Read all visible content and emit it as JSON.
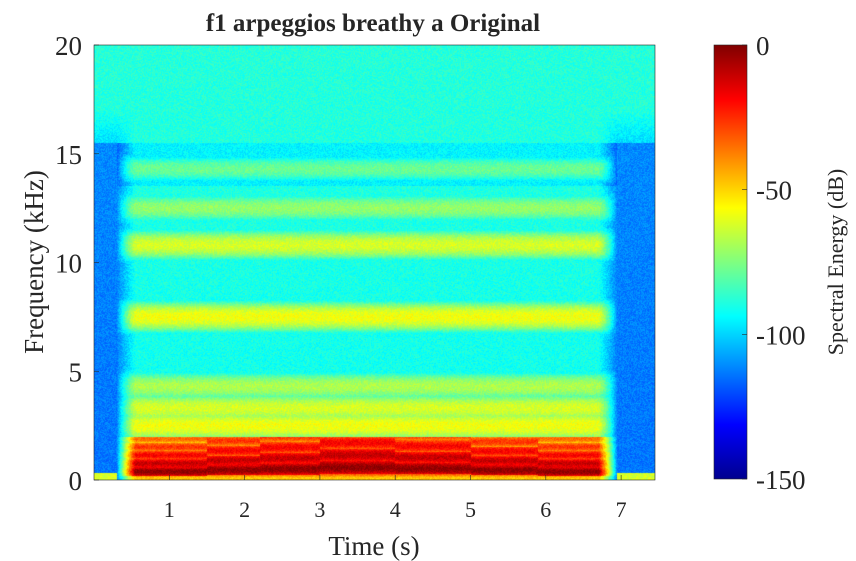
{
  "chart_data": {
    "type": "heatmap",
    "title": "f1 arpeggios breathy a Original",
    "xlabel": "Time (s)",
    "ylabel": "Frequency (kHz)",
    "colorbar_label": "Spectral Energy (dB)",
    "xlim": [
      0,
      7.45
    ],
    "ylim": [
      0,
      20
    ],
    "clim": [
      -150,
      0
    ],
    "xticks": [
      1,
      2,
      3,
      4,
      5,
      6,
      7
    ],
    "yticks": [
      0,
      5,
      10,
      15,
      20
    ],
    "cticks": [
      0,
      -50,
      -100,
      -150
    ],
    "colormap": "jet",
    "grid": false,
    "voiced_segment_s": [
      0.3,
      6.95
    ],
    "notes": [
      {
        "start": 0.3,
        "end": 1.5,
        "f0_khz": 0.38
      },
      {
        "start": 1.5,
        "end": 2.2,
        "f0_khz": 0.45
      },
      {
        "start": 2.2,
        "end": 3.0,
        "f0_khz": 0.5
      },
      {
        "start": 3.0,
        "end": 4.0,
        "f0_khz": 0.57
      },
      {
        "start": 4.0,
        "end": 5.0,
        "f0_khz": 0.52
      },
      {
        "start": 5.0,
        "end": 5.9,
        "f0_khz": 0.44
      },
      {
        "start": 5.9,
        "end": 6.95,
        "f0_khz": 0.38
      }
    ],
    "formant_bands_khz": [
      {
        "center": 0.6,
        "db": -15
      },
      {
        "center": 1.4,
        "db": -40
      },
      {
        "center": 2.5,
        "db": -58
      },
      {
        "center": 3.3,
        "db": -62
      },
      {
        "center": 4.3,
        "db": -68
      },
      {
        "center": 7.5,
        "db": -58
      },
      {
        "center": 10.8,
        "db": -62
      },
      {
        "center": 12.5,
        "db": -72
      },
      {
        "center": 14.3,
        "db": -78
      }
    ],
    "background_db": {
      "low_freq": -92,
      "high_freq": -88,
      "edges": -118
    }
  }
}
